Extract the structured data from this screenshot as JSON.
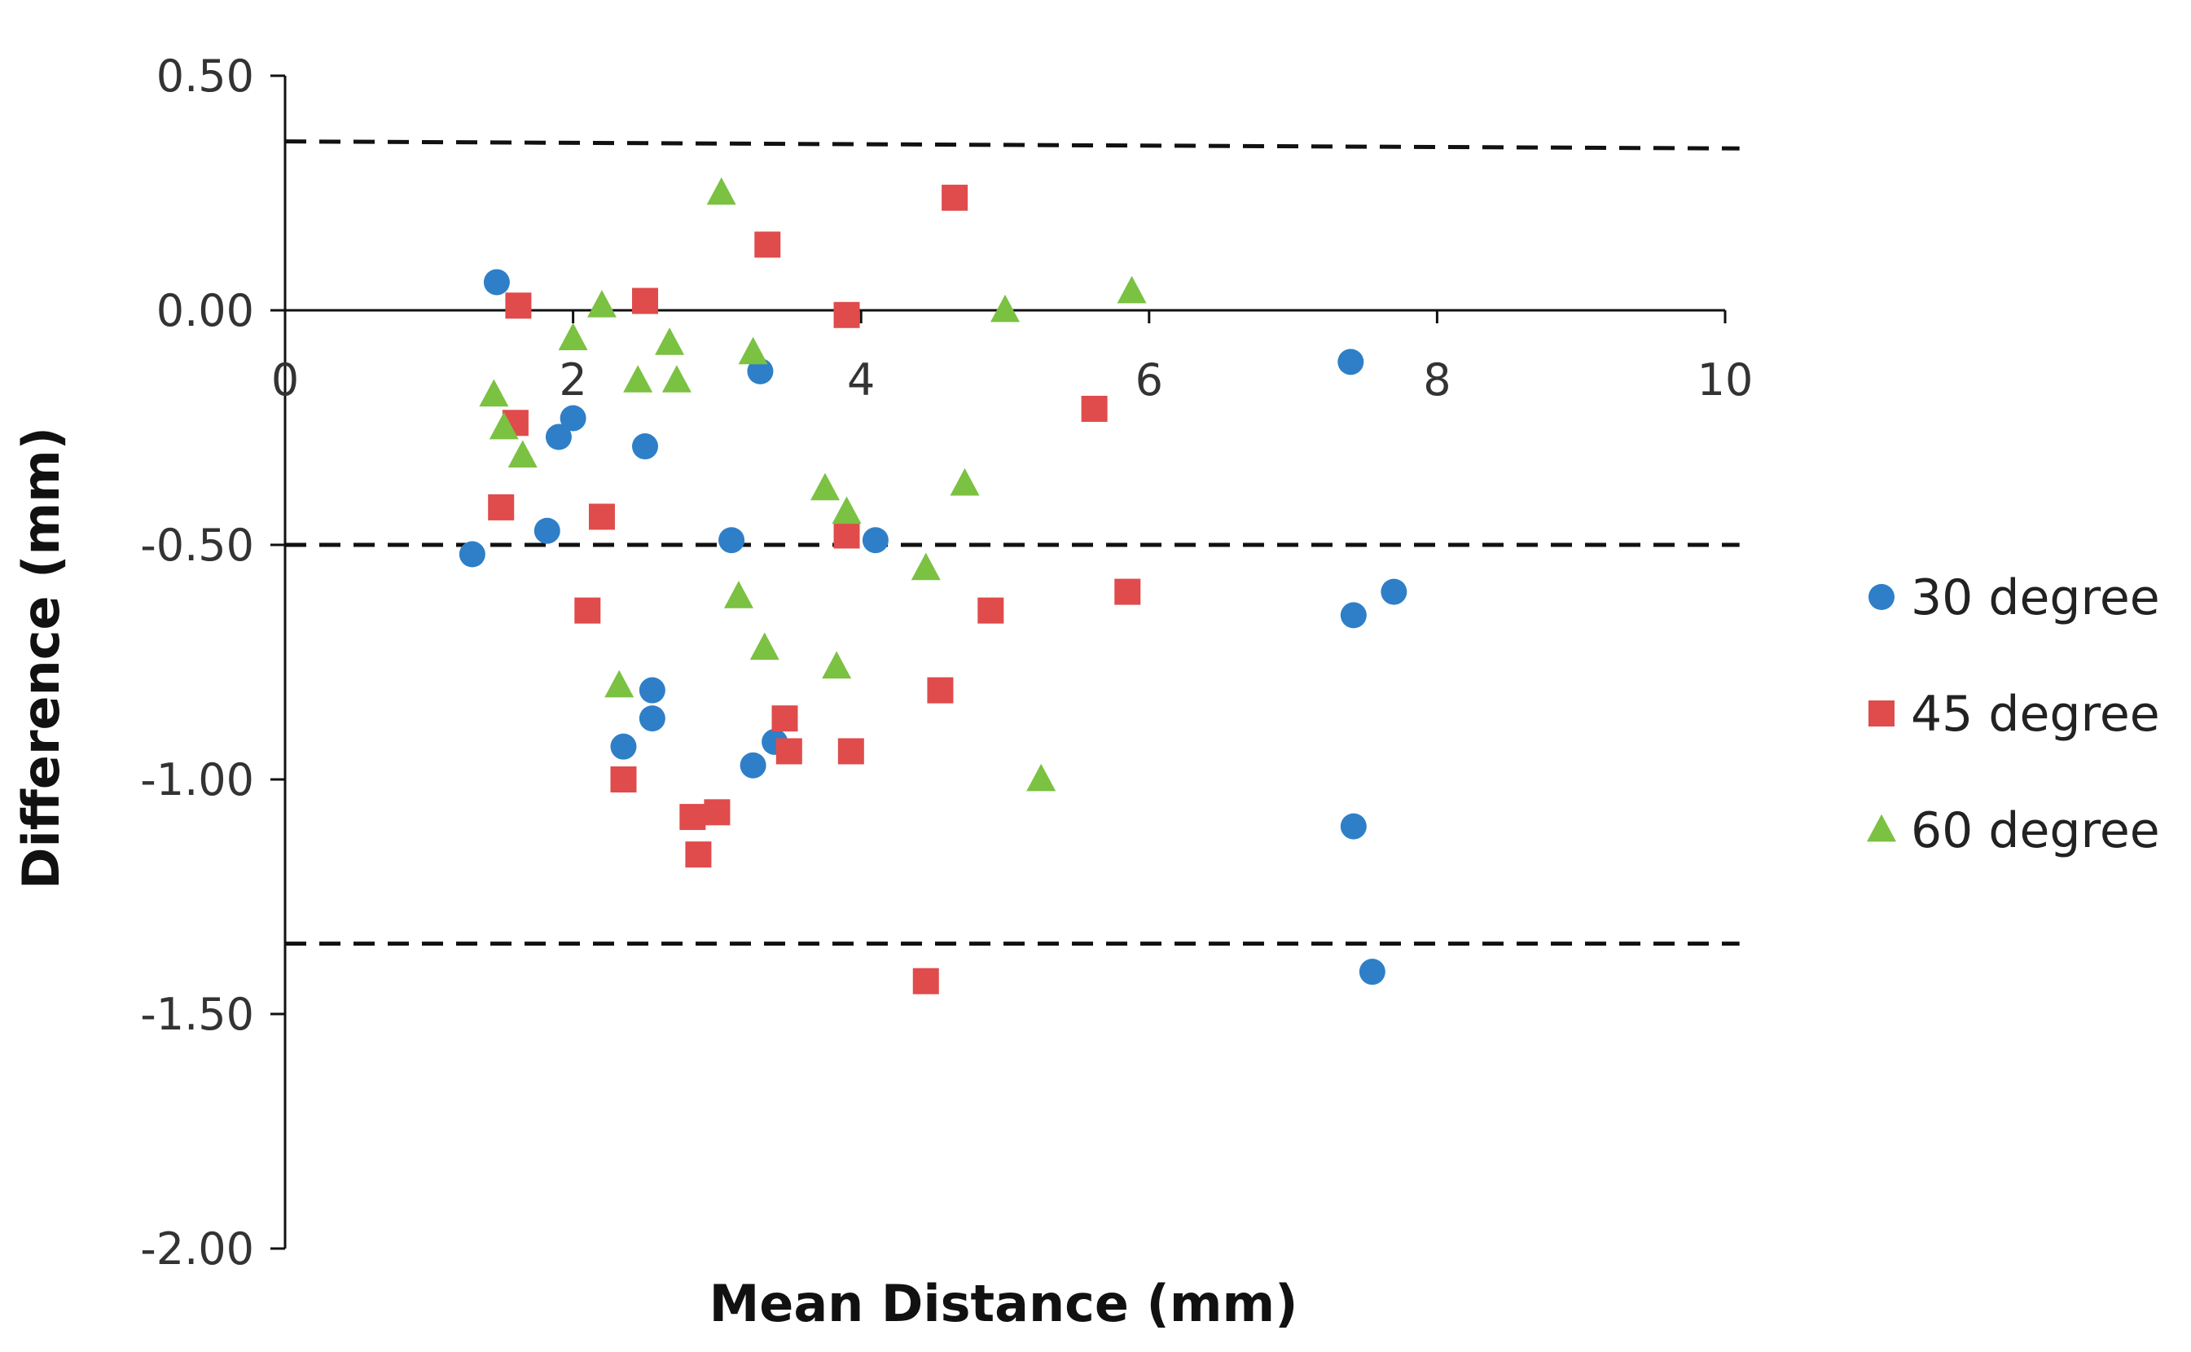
{
  "chart_data": {
    "type": "scatter",
    "title": "",
    "xlabel": "Mean Distance (mm)",
    "ylabel": "Difference (mm)",
    "xlim": [
      0,
      10
    ],
    "ylim": [
      -2.0,
      0.5
    ],
    "x_ticks": [
      0,
      2,
      4,
      6,
      8,
      10
    ],
    "x_tick_labels": [
      "0",
      "2",
      "4",
      "6",
      "8",
      "10"
    ],
    "y_ticks": [
      0.5,
      0.0,
      -0.5,
      -1.0,
      -1.5,
      -2.0
    ],
    "y_tick_labels": [
      "0.50",
      "0.00",
      "-0.50",
      "-1.00",
      "-1.50",
      "-2.00"
    ],
    "grid": false,
    "legend_position": "right",
    "reference_lines": [
      {
        "name": "upper-limit",
        "y": [
          0.36,
          0.345
        ],
        "x": [
          0,
          10.1
        ]
      },
      {
        "name": "mean-difference",
        "y": [
          -0.5,
          -0.5
        ],
        "x": [
          0,
          10.1
        ]
      },
      {
        "name": "lower-limit",
        "y": [
          -1.35,
          -1.35
        ],
        "x": [
          0,
          10.1
        ]
      }
    ],
    "series": [
      {
        "name": "30 degree",
        "marker": "circle",
        "color": "#2e7fc7",
        "points": [
          [
            1.3,
            -0.52
          ],
          [
            1.47,
            0.06
          ],
          [
            1.82,
            -0.47
          ],
          [
            1.9,
            -0.27
          ],
          [
            2.0,
            -0.23
          ],
          [
            2.35,
            -0.93
          ],
          [
            2.5,
            -0.29
          ],
          [
            2.55,
            -0.81
          ],
          [
            2.55,
            -0.87
          ],
          [
            3.1,
            -0.49
          ],
          [
            3.25,
            -0.97
          ],
          [
            3.3,
            -0.13
          ],
          [
            3.4,
            -0.92
          ],
          [
            4.1,
            -0.49
          ],
          [
            7.4,
            -0.11
          ],
          [
            7.42,
            -0.65
          ],
          [
            7.42,
            -1.1
          ],
          [
            7.55,
            -1.41
          ],
          [
            7.7,
            -0.6
          ]
        ]
      },
      {
        "name": "45 degree",
        "marker": "square",
        "color": "#e04b4b",
        "points": [
          [
            1.5,
            -0.42
          ],
          [
            1.6,
            -0.24
          ],
          [
            1.62,
            0.01
          ],
          [
            2.1,
            -0.64
          ],
          [
            2.2,
            -0.44
          ],
          [
            2.35,
            -1.0
          ],
          [
            2.5,
            0.02
          ],
          [
            2.83,
            -1.08
          ],
          [
            2.87,
            -1.16
          ],
          [
            3.0,
            -1.07
          ],
          [
            3.35,
            0.14
          ],
          [
            3.47,
            -0.87
          ],
          [
            3.5,
            -0.94
          ],
          [
            3.9,
            -0.01
          ],
          [
            3.9,
            -0.48
          ],
          [
            3.93,
            -0.94
          ],
          [
            4.45,
            -1.43
          ],
          [
            4.55,
            -0.81
          ],
          [
            4.65,
            0.24
          ],
          [
            4.9,
            -0.64
          ],
          [
            5.62,
            -0.21
          ],
          [
            5.85,
            -0.6
          ]
        ]
      },
      {
        "name": "60 degree",
        "marker": "triangle",
        "color": "#7bc142",
        "points": [
          [
            1.45,
            -0.18
          ],
          [
            1.52,
            -0.25
          ],
          [
            1.65,
            -0.31
          ],
          [
            2.0,
            -0.06
          ],
          [
            2.2,
            0.01
          ],
          [
            2.32,
            -0.8
          ],
          [
            2.45,
            -0.15
          ],
          [
            2.67,
            -0.07
          ],
          [
            2.72,
            -0.15
          ],
          [
            3.03,
            0.25
          ],
          [
            3.15,
            -0.61
          ],
          [
            3.25,
            -0.09
          ],
          [
            3.33,
            -0.72
          ],
          [
            3.75,
            -0.38
          ],
          [
            3.83,
            -0.76
          ],
          [
            3.9,
            -0.43
          ],
          [
            4.45,
            -0.55
          ],
          [
            4.72,
            -0.37
          ],
          [
            5.0,
            0.0
          ],
          [
            5.25,
            -1.0
          ],
          [
            5.88,
            0.04
          ]
        ]
      }
    ]
  }
}
